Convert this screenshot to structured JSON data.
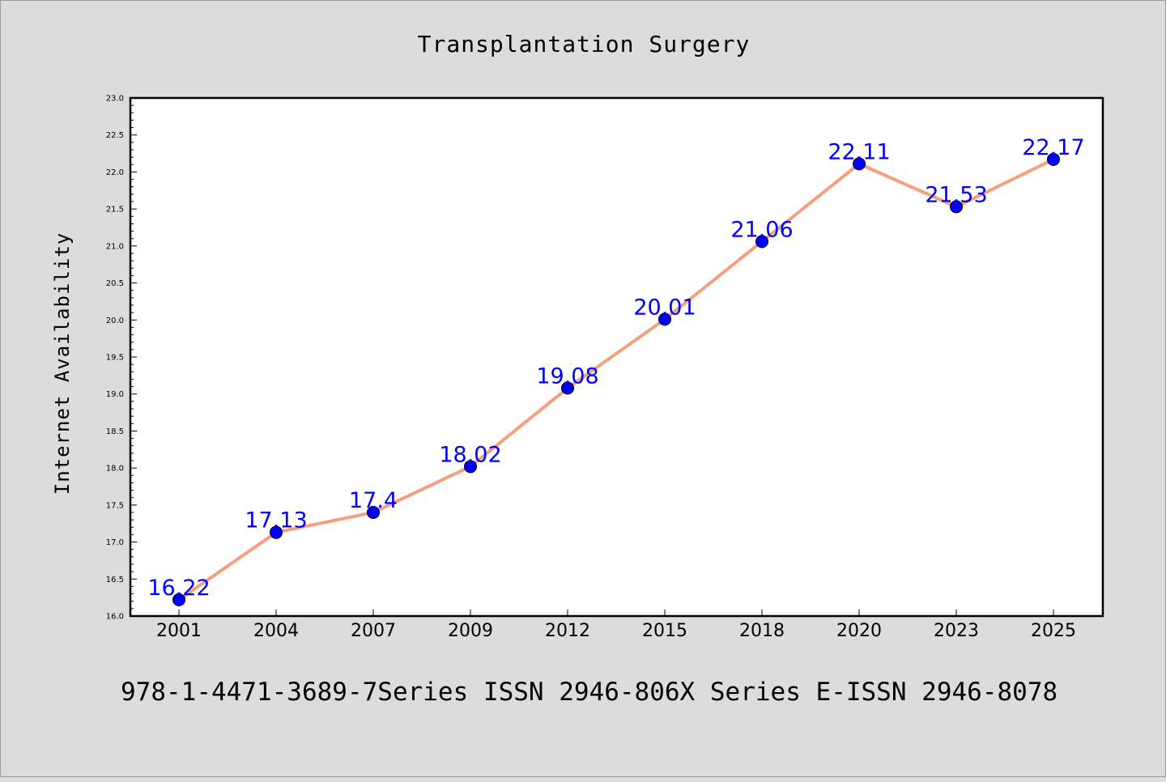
{
  "chart_data": {
    "type": "line",
    "title": "Transplantation Surgery",
    "xlabel": "",
    "ylabel": "Internet Availability",
    "categories": [
      "2001",
      "2004",
      "2007",
      "2009",
      "2012",
      "2015",
      "2018",
      "2020",
      "2023",
      "2025"
    ],
    "series": [
      {
        "values": [
          16.22,
          17.13,
          17.4,
          18.02,
          19.08,
          20.01,
          21.06,
          22.11,
          21.53,
          22.17
        ],
        "data_labels": [
          "16.22",
          "17.13",
          "17.4",
          "18.02",
          "19.08",
          "20.01",
          "21.06",
          "22.11",
          "21.53",
          "22.17"
        ],
        "line_color": "#f4a07e",
        "marker_color": "#0000ff"
      }
    ],
    "ylim": [
      16.0,
      23.0
    ],
    "yticks": [
      "16.0",
      "16.5",
      "17.0",
      "17.5",
      "18.0",
      "18.5",
      "19.0",
      "19.5",
      "20.0",
      "20.5",
      "21.0",
      "21.5",
      "22.0",
      "22.5",
      "23.0"
    ],
    "grid": false,
    "legend": "none"
  },
  "footer": {
    "text": "978-1-4471-3689-7Series ISSN 2946-806X Series E-ISSN 2946-8078"
  }
}
